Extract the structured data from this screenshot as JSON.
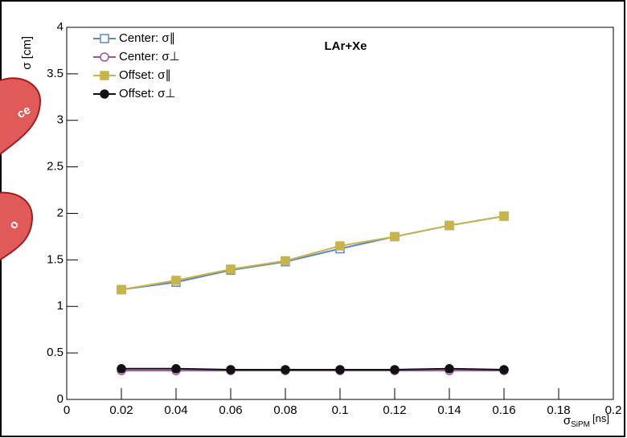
{
  "chart_data": {
    "type": "line",
    "title": "LAr+Xe",
    "y_label": "σ [cm]",
    "x_label": {
      "symbol": "σ",
      "subscript": "SiPM",
      "unit": "[ns]"
    },
    "x": [
      0.02,
      0.04,
      0.06,
      0.08,
      0.1,
      0.12,
      0.14,
      0.16
    ],
    "series": [
      {
        "name": "Center: σ∥",
        "color": "#5b86c4",
        "marker": "open-square",
        "values": [
          1.18,
          1.26,
          1.39,
          1.48,
          1.62,
          1.75,
          1.87,
          1.97
        ]
      },
      {
        "name": "Center: σ⊥",
        "color": "#a0529b",
        "marker": "open-circle",
        "values": [
          0.31,
          0.31,
          0.31,
          0.31,
          0.31,
          0.31,
          0.31,
          0.31
        ]
      },
      {
        "name": "Offset: σ∥",
        "color": "#c9b44a",
        "marker": "square",
        "values": [
          1.18,
          1.28,
          1.4,
          1.49,
          1.65,
          1.75,
          1.87,
          1.97
        ]
      },
      {
        "name": "Offset: σ⊥",
        "color": "#111111",
        "marker": "circle",
        "values": [
          0.33,
          0.33,
          0.32,
          0.32,
          0.32,
          0.32,
          0.33,
          0.32
        ]
      }
    ],
    "xlim": [
      0,
      0.2
    ],
    "xticks": [
      0,
      0.02,
      0.04,
      0.06,
      0.08,
      0.1,
      0.12,
      0.14,
      0.16,
      0.18,
      0.2
    ],
    "ylim": [
      0,
      4
    ],
    "yticks": [
      0,
      0.5,
      1,
      1.5,
      2,
      2.5,
      3,
      3.5,
      4
    ],
    "legend": "top-left",
    "annotations": [
      "ce",
      "o"
    ]
  }
}
